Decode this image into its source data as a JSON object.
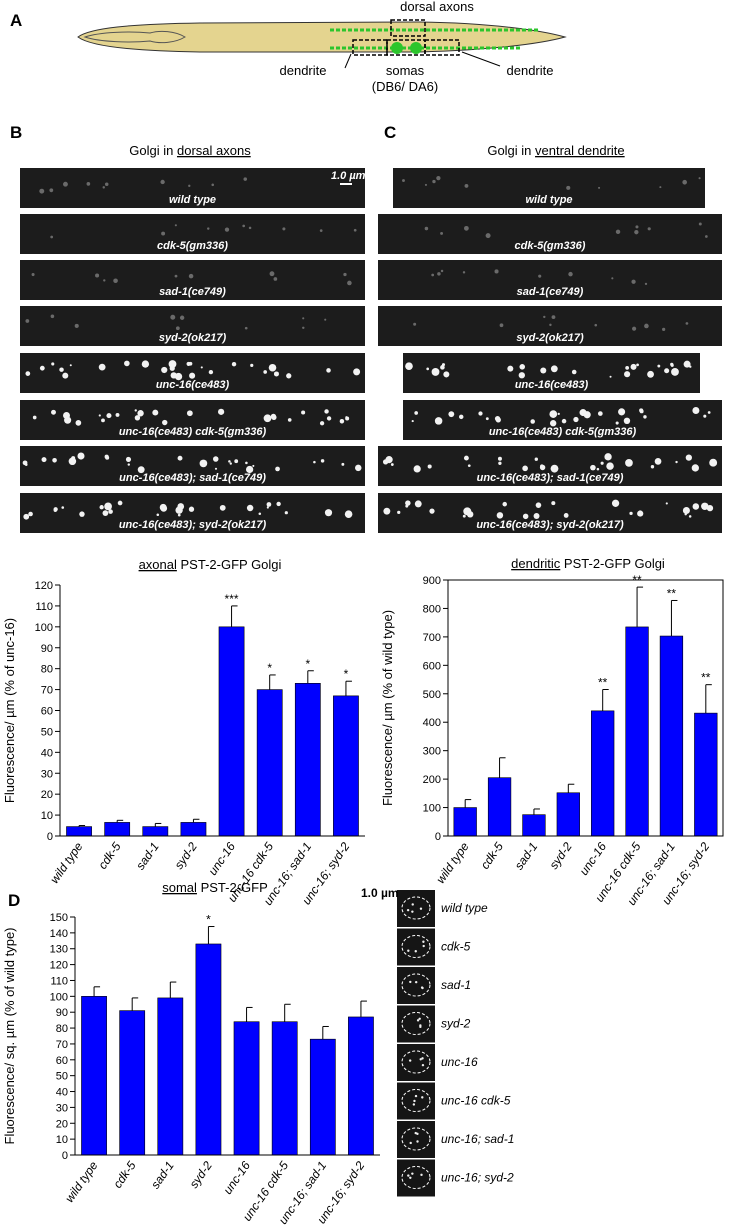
{
  "panel_a": {
    "letter": "A",
    "dorsal": "dorsal axons",
    "dendrite_left": "dendrite",
    "somas": "somas",
    "somas_sub": "(DB6/ DA6)",
    "dendrite_right": "dendrite"
  },
  "panel_b": {
    "letter": "B",
    "title_prefix": "Golgi in",
    "title_underlined": "dorsal axons",
    "scale_bar": "1.0 µm",
    "strips": [
      "wild type",
      "cdk-5(gm336)",
      "sad-1(ce749)",
      "syd-2(ok217)",
      "unc-16(ce483)",
      "unc-16(ce483) cdk-5(gm336)",
      "unc-16(ce483); sad-1(ce749)",
      "unc-16(ce483); syd-2(ok217)"
    ]
  },
  "panel_c": {
    "letter": "C",
    "title_prefix": "Golgi in",
    "title_underlined": "ventral dendrite",
    "strips": [
      "wild type",
      "cdk-5(gm336)",
      "sad-1(ce749)",
      "syd-2(ok217)",
      "unc-16(ce483)",
      "unc-16(ce483) cdk-5(gm336)",
      "unc-16(ce483); sad-1(ce749)",
      "unc-16(ce483); syd-2(ok217)"
    ]
  },
  "panel_d": {
    "letter": "D",
    "scale_bar": "1.0 µm",
    "cells": [
      "wild type",
      "cdk-5",
      "sad-1",
      "syd-2",
      "unc-16",
      "unc-16 cdk-5",
      "unc-16; sad-1",
      "unc-16; syd-2"
    ],
    "cell_colors": [
      "#000",
      "#000",
      "#000",
      "#000",
      "#e0201b",
      "#e0201b",
      "#e0201b",
      "#e0201b"
    ]
  },
  "chart_data": [
    {
      "type": "bar",
      "title_underlined": "axonal",
      "title": "PST-2-GFP Golgi",
      "ylabel": "Fluorescence/ µm (% of unc-16)",
      "categories": [
        "wild type",
        "cdk-5",
        "sad-1",
        "syd-2",
        "unc-16",
        "unc-16 cdk-5",
        "unc-16; sad-1",
        "unc-16; syd-2"
      ],
      "category_colors": [
        "#000",
        "#000",
        "#000",
        "#000",
        "#e0201b",
        "#e0201b",
        "#e0201b",
        "#e0201b"
      ],
      "values": [
        4.5,
        6.5,
        4.5,
        6.5,
        100,
        70,
        73,
        67
      ],
      "errors": [
        0.5,
        1,
        1.5,
        1.5,
        10,
        7,
        6,
        7
      ],
      "color": "#0000ff",
      "significance": [
        null,
        null,
        null,
        null,
        "***",
        "*",
        "*",
        "*"
      ],
      "significance_colors": [
        "#000",
        "#000",
        "#000",
        "#000",
        "#000",
        "#e0201b",
        "#e0201b",
        "#e0201b"
      ],
      "ylim": [
        0,
        120
      ],
      "yticks": [
        0,
        10,
        20,
        30,
        40,
        50,
        60,
        70,
        80,
        90,
        100,
        110,
        120
      ],
      "frame": false
    },
    {
      "type": "bar",
      "title_underlined": "dendritic",
      "title": "PST-2-GFP Golgi",
      "ylabel": "Fluorescence/ µm (% of wild type)",
      "categories": [
        "wild type",
        "cdk-5",
        "sad-1",
        "syd-2",
        "unc-16",
        "unc-16 cdk-5",
        "unc-16; sad-1",
        "unc-16; syd-2"
      ],
      "category_colors": [
        "#000",
        "#000",
        "#000",
        "#000",
        "#e0201b",
        "#e0201b",
        "#e0201b",
        "#e0201b"
      ],
      "values": [
        100,
        205,
        75,
        152,
        440,
        735,
        703,
        432
      ],
      "errors": [
        28,
        70,
        20,
        30,
        75,
        140,
        125,
        100
      ],
      "color": "#0000ff",
      "significance": [
        null,
        null,
        null,
        null,
        "**",
        "**",
        "**",
        "**"
      ],
      "significance_colors": [
        "#000",
        "#000",
        "#000",
        "#000",
        "#000",
        "#000",
        "#000",
        "#000"
      ],
      "ylim": [
        0,
        900
      ],
      "yticks": [
        0,
        100,
        200,
        300,
        400,
        500,
        600,
        700,
        800,
        900
      ],
      "frame": true
    },
    {
      "type": "bar",
      "title_underlined": "somal",
      "title": "PST-2-GFP",
      "ylabel": "Fluorescence/ sq. µm (% of wild type)",
      "categories": [
        "wild type",
        "cdk-5",
        "sad-1",
        "syd-2",
        "unc-16",
        "unc-16 cdk-5",
        "unc-16; sad-1",
        "unc-16; syd-2"
      ],
      "category_colors": [
        "#000",
        "#000",
        "#000",
        "#000",
        "#e0201b",
        "#e0201b",
        "#e0201b",
        "#e0201b"
      ],
      "values": [
        100,
        91,
        99,
        133,
        84,
        84,
        73,
        87
      ],
      "errors": [
        6,
        8,
        10,
        11,
        9,
        11,
        8,
        10
      ],
      "color": "#0000ff",
      "significance": [
        null,
        null,
        null,
        "*",
        null,
        null,
        null,
        null
      ],
      "significance_colors": [
        "#000",
        "#000",
        "#000",
        "#000",
        "#000",
        "#000",
        "#000",
        "#000"
      ],
      "ylim": [
        0,
        150
      ],
      "yticks": [
        0,
        10,
        20,
        30,
        40,
        50,
        60,
        70,
        80,
        90,
        100,
        110,
        120,
        130,
        140,
        150
      ],
      "frame": false
    }
  ]
}
